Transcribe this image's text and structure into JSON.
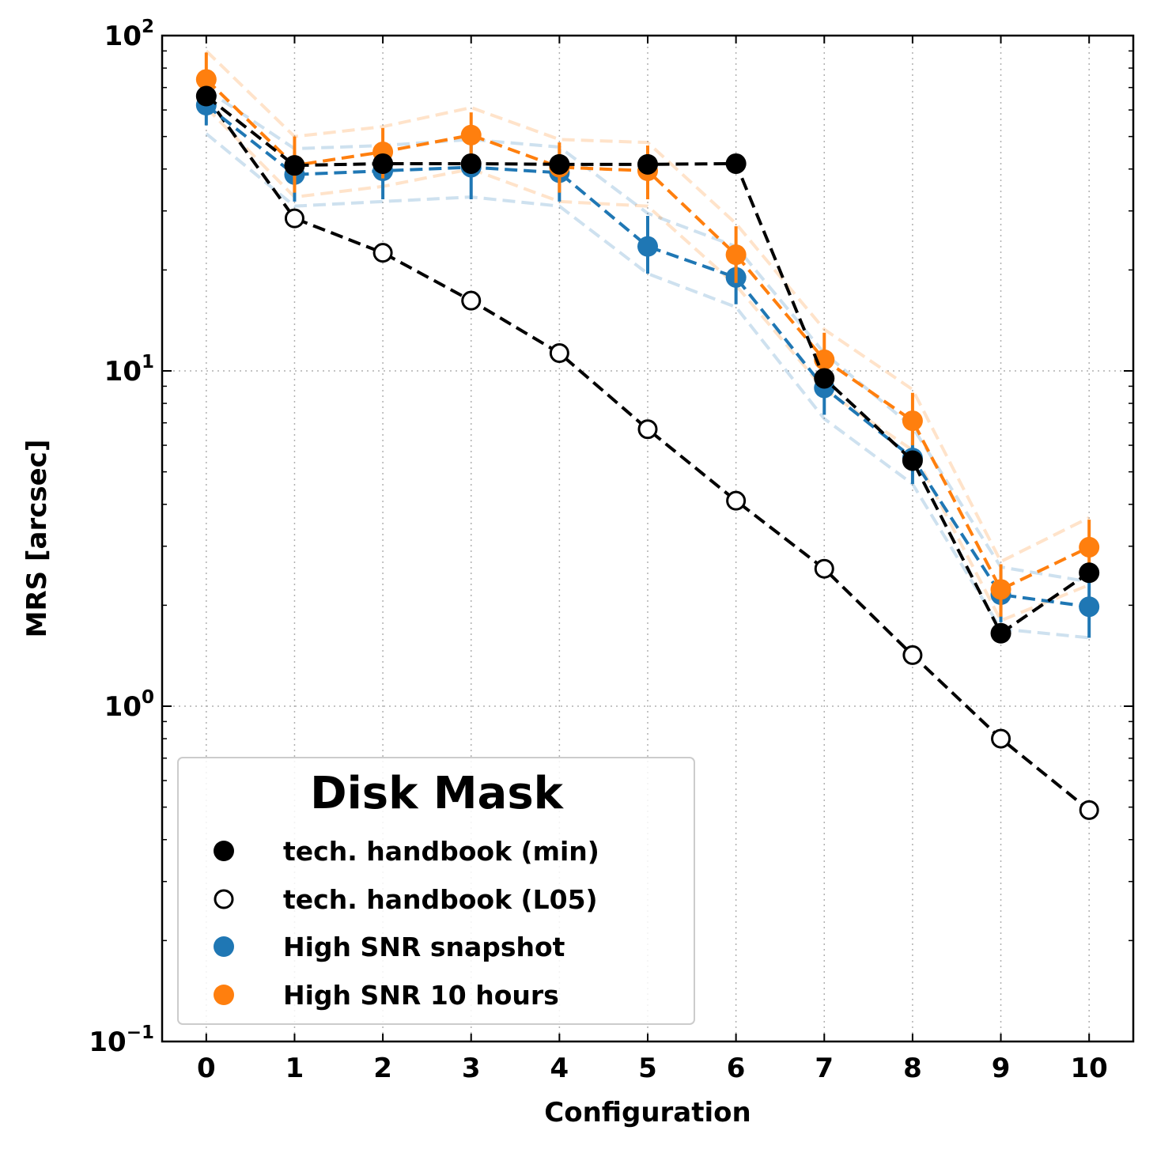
{
  "chart_data": {
    "type": "line",
    "title": "",
    "xlabel": "Configuration",
    "ylabel": "MRS [arcsec]",
    "yscale": "log",
    "xlim": [
      -0.5,
      10.5
    ],
    "ylim": [
      0.1,
      100
    ],
    "x": [
      0,
      1,
      2,
      3,
      4,
      5,
      6,
      7,
      8,
      9,
      10
    ],
    "x_tick_labels": [
      "0",
      "1",
      "2",
      "3",
      "4",
      "5",
      "6",
      "7",
      "8",
      "9",
      "10"
    ],
    "y_ticks": [
      {
        "base": "10",
        "exp": "−1",
        "value": 0.1
      },
      {
        "base": "10",
        "exp": "0",
        "value": 1
      },
      {
        "base": "10",
        "exp": "1",
        "value": 10
      },
      {
        "base": "10",
        "exp": "2",
        "value": 100
      }
    ],
    "grid": true,
    "legend": {
      "title": "Disk Mask",
      "position": "lower-left",
      "entries": [
        {
          "label": "tech. handbook (min)",
          "color": "#000000",
          "marker": "filled"
        },
        {
          "label": "tech. handbook (L05)",
          "color": "#000000",
          "marker": "open"
        },
        {
          "label": "High SNR snapshot",
          "color": "#1f77b4",
          "marker": "filled"
        },
        {
          "label": "High SNR 10 hours",
          "color": "#ff7f0e",
          "marker": "filled"
        }
      ]
    },
    "series": [
      {
        "name": "tech. handbook (min)",
        "color": "#000000",
        "marker": "filled",
        "line": "dashed",
        "values": [
          66,
          41,
          41.5,
          41.5,
          41.3,
          41.3,
          41.5,
          9.5,
          5.4,
          1.65,
          2.5
        ]
      },
      {
        "name": "tech. handbook (L05)",
        "color": "#000000",
        "marker": "open",
        "line": "dashed",
        "values": [
          66,
          28.5,
          22.5,
          16.2,
          11.3,
          6.7,
          4.1,
          2.57,
          1.42,
          0.8,
          0.49
        ]
      },
      {
        "name": "High SNR snapshot",
        "color": "#1f77b4",
        "marker": "filled",
        "line": "dashed",
        "values": [
          62,
          38.5,
          39.5,
          40.5,
          39,
          23.5,
          19,
          8.9,
          5.5,
          2.15,
          1.98
        ],
        "err_low": [
          54,
          32,
          32.5,
          32.5,
          32,
          19.5,
          15.8,
          7.4,
          4.6,
          1.78,
          1.6
        ],
        "err_high": [
          70,
          45,
          46,
          48,
          46,
          29,
          23,
          10.7,
          6.8,
          2.55,
          2.4
        ],
        "band_low": [
          51,
          31,
          32,
          33,
          31,
          19.5,
          15.5,
          7.2,
          4.6,
          1.7,
          1.6
        ],
        "band_high": [
          69,
          46,
          47,
          49,
          46.5,
          29.5,
          23.5,
          11.3,
          6.8,
          2.6,
          2.35
        ]
      },
      {
        "name": "High SNR 10 hours",
        "color": "#ff7f0e",
        "marker": "filled",
        "line": "dashed",
        "values": [
          74,
          41,
          45,
          50.5,
          40.5,
          39.5,
          22.2,
          10.8,
          7.1,
          2.23,
          2.98
        ],
        "err_low": [
          62,
          34,
          37.5,
          42,
          34,
          32.5,
          18.3,
          9.0,
          6.0,
          1.85,
          2.45
        ],
        "err_high": [
          89,
          50,
          53,
          59,
          48,
          47,
          27,
          13,
          8.6,
          2.65,
          3.6
        ],
        "band_low": [
          61,
          33,
          35.5,
          40,
          32,
          31,
          18,
          8.8,
          5.8,
          1.8,
          2.3
        ],
        "band_high": [
          90,
          50,
          53.5,
          61,
          49,
          48,
          27.5,
          13.3,
          8.8,
          2.7,
          3.65
        ]
      }
    ]
  }
}
